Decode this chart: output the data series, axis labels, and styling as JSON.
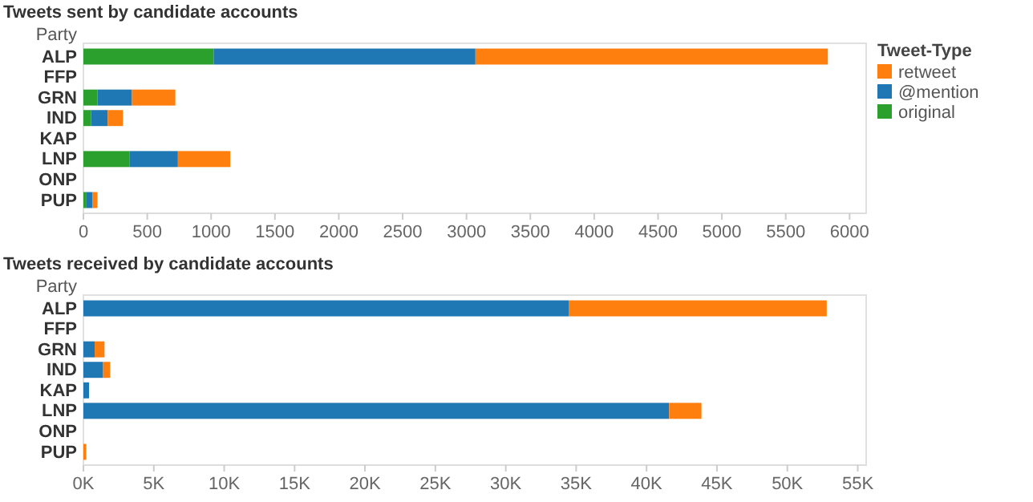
{
  "chart_data": [
    {
      "type": "bar",
      "orientation": "horizontal",
      "stacked": true,
      "title": "Tweets sent by candidate accounts",
      "ylabel": "Party",
      "legend_title": "Tweet-Type",
      "legend": "right",
      "grid": false,
      "categories": [
        "ALP",
        "FFP",
        "GRN",
        "IND",
        "KAP",
        "LNP",
        "ONP",
        "PUP"
      ],
      "series": [
        {
          "name": "original",
          "color": "#2ca02c",
          "values": [
            1020,
            null,
            110,
            60,
            null,
            360,
            null,
            20
          ]
        },
        {
          "name": "@mention",
          "color": "#1f77b4",
          "values": [
            2050,
            null,
            270,
            130,
            null,
            380,
            null,
            50
          ]
        },
        {
          "name": "retweet",
          "color": "#ff7f0e",
          "values": [
            2760,
            null,
            340,
            120,
            null,
            410,
            null,
            40
          ]
        }
      ],
      "xlim": [
        0,
        6130
      ],
      "xticks": [
        0,
        500,
        1000,
        1500,
        2000,
        2500,
        3000,
        3500,
        4000,
        4500,
        5000,
        5500,
        6000
      ]
    },
    {
      "type": "bar",
      "orientation": "horizontal",
      "stacked": true,
      "title": "Tweets received by candidate accounts",
      "ylabel": "Party",
      "grid": false,
      "categories": [
        "ALP",
        "FFP",
        "GRN",
        "IND",
        "KAP",
        "LNP",
        "ONP",
        "PUP"
      ],
      "series": [
        {
          "color": "#1f77b4",
          "values": [
            34500,
            null,
            800,
            1400,
            400,
            41600,
            null,
            null
          ]
        },
        {
          "color": "#ff7f0e",
          "values": [
            18300,
            null,
            700,
            500,
            null,
            2300,
            null,
            200
          ]
        }
      ],
      "xlim": [
        0,
        55600
      ],
      "xticks": [
        {
          "value": 0,
          "label": "0K"
        },
        {
          "value": 5000,
          "label": "5K"
        },
        {
          "value": 10000,
          "label": "10K"
        },
        {
          "value": 15000,
          "label": "15K"
        },
        {
          "value": 20000,
          "label": "20K"
        },
        {
          "value": 25000,
          "label": "25K"
        },
        {
          "value": 30000,
          "label": "30K"
        },
        {
          "value": 35000,
          "label": "35K"
        },
        {
          "value": 40000,
          "label": "40K"
        },
        {
          "value": 45000,
          "label": "45K"
        },
        {
          "value": 50000,
          "label": "50K"
        },
        {
          "value": 55000,
          "label": "55K"
        }
      ]
    }
  ]
}
